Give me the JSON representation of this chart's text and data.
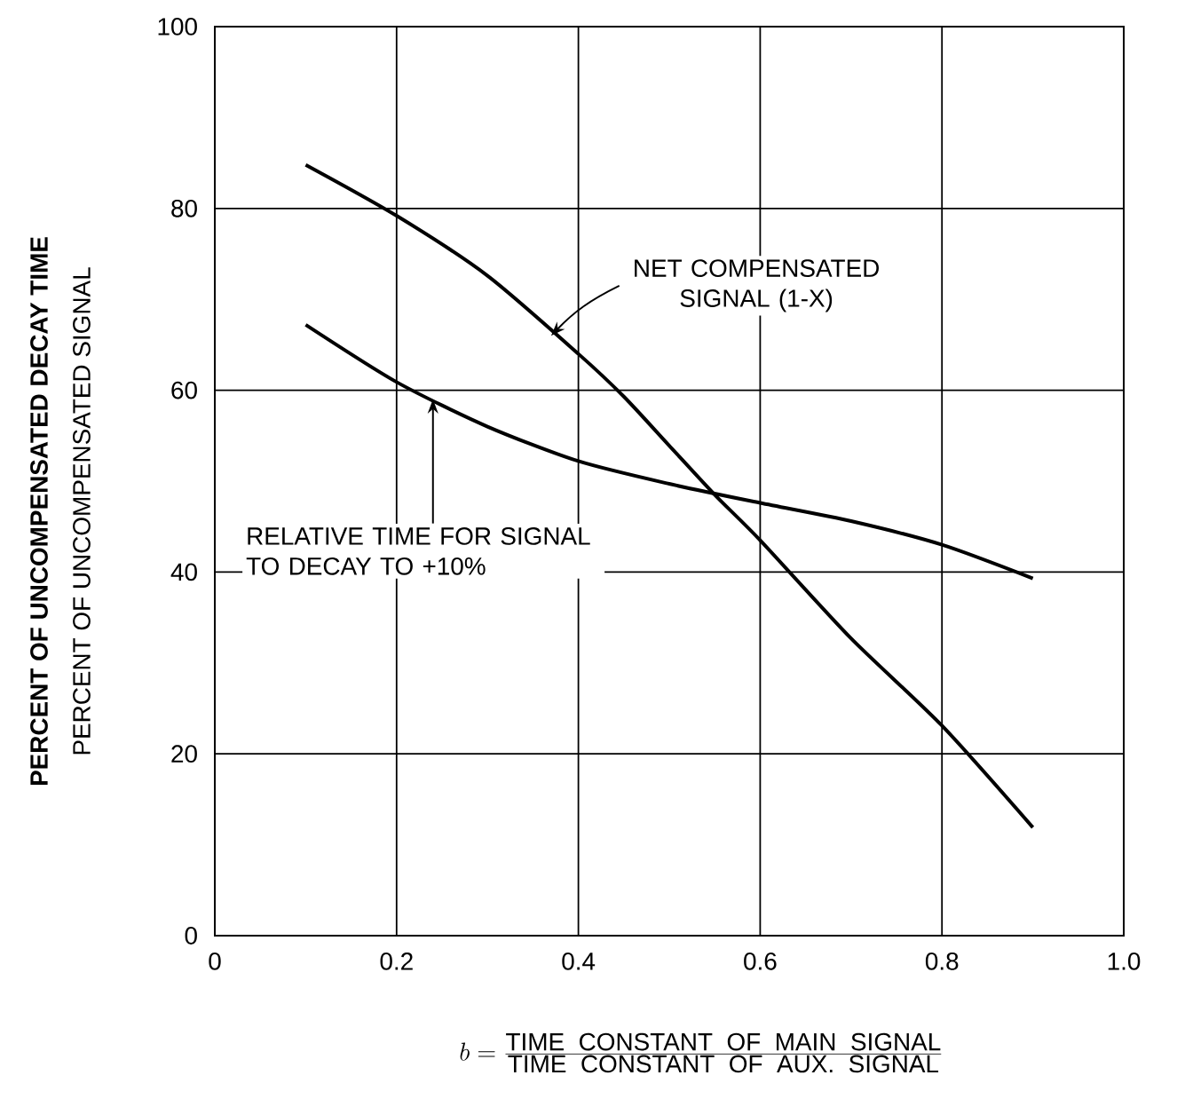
{
  "chart_data": {
    "type": "line",
    "xlabel": "b = \\frac{\\mbox{TIME\\ \\ CONSTANT\\ \\ OF\\ \\ MAIN\\ \\ SIGNAL}}{\\mbox{TIME\\ \\ CONSTANT\\ \\ OF\\ \\ AUX.\\ \\ SIGNAL}}",
    "ylabel": "PERCENT OF UNCOMPENSATED DECAY TIME",
    "x": [
      0.1,
      0.2,
      0.3,
      0.4,
      0.45,
      0.5,
      0.55,
      0.6,
      0.7,
      0.8,
      0.9
    ],
    "series": [
      {
        "color": "#000000",
        "values": [
          84.8,
          79.2,
          72.6,
          64,
          59.3,
          53.9,
          48.5,
          43.5,
          32.7,
          23.1,
          11.9
        ]
      },
      {
        "color": "#000000",
        "x": [
          0.1,
          0.2,
          0.3,
          0.4,
          0.5,
          0.6,
          0.7,
          0.8,
          0.9
        ],
        "values": [
          67.2,
          60.9,
          56,
          52.2,
          49.7,
          47.6,
          45.6,
          43,
          39.3
        ]
      }
    ],
    "annotations": [
      {
        "text": "NET COMPENSATED SIGNAL (1-X)",
        "x": 0.37,
        "y": 66
      },
      {
        "text": "RELATIVE TIME FOR SIGNAL TO DECAY TO +10%",
        "x": 0.24,
        "y": 59
      },
      "PERCENT OF UNCOMPENSATED SIGNAL"
    ],
    "xlim": [
      0,
      1
    ],
    "ylim": [
      0,
      100
    ],
    "xticks": [
      0,
      0.2,
      0.4,
      0.6,
      0.8,
      {
        "value": 1,
        "label": "1.0"
      }
    ],
    "yticks": [
      0,
      20,
      40,
      60,
      80,
      100
    ],
    "grid": true,
    "marker": "none",
    "line_style": "solid"
  }
}
